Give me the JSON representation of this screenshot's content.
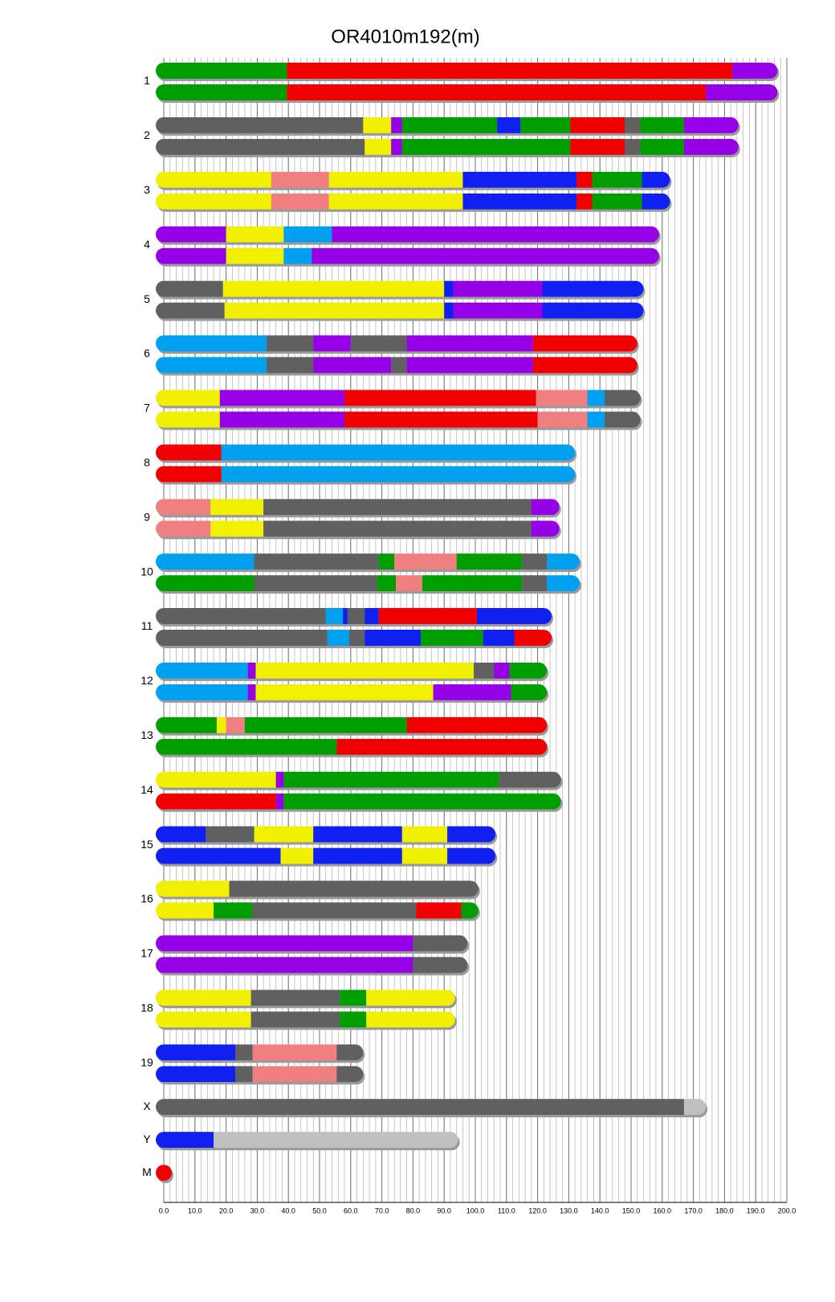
{
  "chart_data": {
    "type": "ideogram",
    "title": "OR4010m192(m)",
    "palette": {
      "G": "#009e00",
      "R": "#f00000",
      "P": "#9600e6",
      "Gy": "#606060",
      "Y": "#f0f000",
      "B": "#1020f0",
      "S": "#f08080",
      "LB": "#00a0f0",
      "LGy": "#c0c0c0"
    },
    "xlim": [
      0,
      200
    ],
    "xticks": [
      {
        "value": 0,
        "label": "0.0"
      },
      {
        "value": 10,
        "label": "10.0"
      },
      {
        "value": 20,
        "label": "20.0"
      },
      {
        "value": 30,
        "label": "30.0"
      },
      {
        "value": 40,
        "label": "40.0"
      },
      {
        "value": 50,
        "label": "50.0"
      },
      {
        "value": 60,
        "label": "60.0"
      },
      {
        "value": 70,
        "label": "70.0"
      },
      {
        "value": 80,
        "label": "80.0"
      },
      {
        "value": 90,
        "label": "90.0"
      },
      {
        "value": 100,
        "label": "100.0"
      },
      {
        "value": 110,
        "label": "110.0"
      },
      {
        "value": 120,
        "label": "120.0"
      },
      {
        "value": 130,
        "label": "130.0"
      },
      {
        "value": 140,
        "label": "140.0"
      },
      {
        "value": 150,
        "label": "150.0"
      },
      {
        "value": 160,
        "label": "160.0"
      },
      {
        "value": 170,
        "label": "170.0"
      },
      {
        "value": 180,
        "label": "180.0"
      },
      {
        "value": 190,
        "label": "190.0"
      },
      {
        "value": 200,
        "label": "200.0"
      }
    ],
    "minor_grid_step": 2,
    "chromosomes": [
      {
        "label": "1",
        "haplotypes": [
          [
            [
              39.5,
              "G"
            ],
            [
              182.5,
              "R"
            ],
            [
              197,
              "P"
            ]
          ],
          [
            [
              39.5,
              "G"
            ],
            [
              174,
              "R"
            ],
            [
              197,
              "P"
            ]
          ]
        ]
      },
      {
        "label": "2",
        "haplotypes": [
          [
            [
              64,
              "Gy"
            ],
            [
              73,
              "Y"
            ],
            [
              76.5,
              "P"
            ],
            [
              107,
              "G"
            ],
            [
              114.5,
              "B"
            ],
            [
              130.5,
              "G"
            ],
            [
              148,
              "R"
            ],
            [
              153,
              "Gy"
            ],
            [
              167,
              "G"
            ],
            [
              184.5,
              "P"
            ]
          ],
          [
            [
              64.5,
              "Gy"
            ],
            [
              73,
              "Y"
            ],
            [
              76.5,
              "P"
            ],
            [
              130.5,
              "G"
            ],
            [
              148,
              "R"
            ],
            [
              153,
              "Gy"
            ],
            [
              167,
              "G"
            ],
            [
              184.5,
              "P"
            ]
          ]
        ]
      },
      {
        "label": "3",
        "haplotypes": [
          [
            [
              34.5,
              "Y"
            ],
            [
              53,
              "S"
            ],
            [
              96,
              "Y"
            ],
            [
              132.5,
              "B"
            ],
            [
              137.5,
              "R"
            ],
            [
              153.5,
              "G"
            ],
            [
              162.5,
              "B"
            ]
          ],
          [
            [
              34.5,
              "Y"
            ],
            [
              53,
              "S"
            ],
            [
              96,
              "Y"
            ],
            [
              132.5,
              "B"
            ],
            [
              137.5,
              "R"
            ],
            [
              153.5,
              "G"
            ],
            [
              162.5,
              "B"
            ]
          ]
        ]
      },
      {
        "label": "4",
        "haplotypes": [
          [
            [
              20,
              "P"
            ],
            [
              38.5,
              "Y"
            ],
            [
              54,
              "LB"
            ],
            [
              159,
              "P"
            ]
          ],
          [
            [
              20,
              "P"
            ],
            [
              38.5,
              "Y"
            ],
            [
              47.5,
              "LB"
            ],
            [
              159,
              "P"
            ]
          ]
        ]
      },
      {
        "label": "5",
        "haplotypes": [
          [
            [
              19,
              "Gy"
            ],
            [
              90,
              "Y"
            ],
            [
              93,
              "B"
            ],
            [
              121.5,
              "P"
            ],
            [
              154,
              "B"
            ]
          ],
          [
            [
              19.5,
              "Gy"
            ],
            [
              90,
              "Y"
            ],
            [
              93,
              "B"
            ],
            [
              121.5,
              "P"
            ],
            [
              154,
              "B"
            ]
          ]
        ]
      },
      {
        "label": "6",
        "haplotypes": [
          [
            [
              33,
              "LB"
            ],
            [
              48,
              "Gy"
            ],
            [
              60,
              "P"
            ],
            [
              78,
              "Gy"
            ],
            [
              118.5,
              "P"
            ],
            [
              152,
              "R"
            ]
          ],
          [
            [
              33,
              "LB"
            ],
            [
              48,
              "Gy"
            ],
            [
              73,
              "P"
            ],
            [
              78,
              "Gy"
            ],
            [
              118.5,
              "P"
            ],
            [
              152,
              "R"
            ]
          ]
        ]
      },
      {
        "label": "7",
        "haplotypes": [
          [
            [
              18,
              "Y"
            ],
            [
              58,
              "P"
            ],
            [
              119.5,
              "R"
            ],
            [
              136,
              "S"
            ],
            [
              141.5,
              "LB"
            ],
            [
              153,
              "Gy"
            ]
          ],
          [
            [
              18,
              "Y"
            ],
            [
              58,
              "P"
            ],
            [
              120,
              "R"
            ],
            [
              136,
              "S"
            ],
            [
              141.5,
              "LB"
            ],
            [
              153,
              "Gy"
            ]
          ]
        ]
      },
      {
        "label": "8",
        "haplotypes": [
          [
            [
              18.5,
              "R"
            ],
            [
              132,
              "LB"
            ]
          ],
          [
            [
              18.5,
              "R"
            ],
            [
              132,
              "LB"
            ]
          ]
        ]
      },
      {
        "label": "9",
        "haplotypes": [
          [
            [
              15,
              "S"
            ],
            [
              32,
              "Y"
            ],
            [
              118,
              "Gy"
            ],
            [
              127,
              "P"
            ]
          ],
          [
            [
              15,
              "S"
            ],
            [
              32,
              "Y"
            ],
            [
              118,
              "Gy"
            ],
            [
              127,
              "P"
            ]
          ]
        ]
      },
      {
        "label": "10",
        "haplotypes": [
          [
            [
              29,
              "LB"
            ],
            [
              69,
              "Gy"
            ],
            [
              74,
              "G"
            ],
            [
              94,
              "S"
            ],
            [
              115,
              "G"
            ],
            [
              123,
              "Gy"
            ],
            [
              133.5,
              "LB"
            ]
          ],
          [
            [
              29,
              "G"
            ],
            [
              68.5,
              "Gy"
            ],
            [
              74.5,
              "G"
            ],
            [
              83,
              "S"
            ],
            [
              115,
              "G"
            ],
            [
              123,
              "Gy"
            ],
            [
              133.5,
              "LB"
            ]
          ]
        ]
      },
      {
        "label": "11",
        "haplotypes": [
          [
            [
              52,
              "Gy"
            ],
            [
              57.5,
              "LB"
            ],
            [
              59,
              "B"
            ],
            [
              64.5,
              "Gy"
            ],
            [
              69,
              "B"
            ],
            [
              100.5,
              "R"
            ],
            [
              124.5,
              "B"
            ]
          ],
          [
            [
              52.5,
              "Gy"
            ],
            [
              59.5,
              "LB"
            ],
            [
              64.5,
              "Gy"
            ],
            [
              82.5,
              "B"
            ],
            [
              102.5,
              "G"
            ],
            [
              112.5,
              "B"
            ],
            [
              124.5,
              "R"
            ]
          ]
        ]
      },
      {
        "label": "12",
        "haplotypes": [
          [
            [
              27,
              "LB"
            ],
            [
              29.5,
              "P"
            ],
            [
              99.5,
              "Y"
            ],
            [
              106,
              "Gy"
            ],
            [
              111,
              "P"
            ],
            [
              123,
              "G"
            ]
          ],
          [
            [
              27,
              "LB"
            ],
            [
              29.5,
              "P"
            ],
            [
              86.5,
              "Y"
            ],
            [
              111.5,
              "P"
            ],
            [
              123,
              "G"
            ]
          ]
        ]
      },
      {
        "label": "13",
        "haplotypes": [
          [
            [
              17,
              "G"
            ],
            [
              20,
              "Y"
            ],
            [
              26,
              "S"
            ],
            [
              78,
              "G"
            ],
            [
              123,
              "R"
            ]
          ],
          [
            [
              55.5,
              "G"
            ],
            [
              123,
              "R"
            ]
          ]
        ]
      },
      {
        "label": "14",
        "haplotypes": [
          [
            [
              36,
              "Y"
            ],
            [
              38.5,
              "P"
            ],
            [
              107.5,
              "G"
            ],
            [
              127.5,
              "Gy"
            ]
          ],
          [
            [
              36,
              "R"
            ],
            [
              38.5,
              "P"
            ],
            [
              127.5,
              "G"
            ]
          ]
        ]
      },
      {
        "label": "15",
        "haplotypes": [
          [
            [
              13.5,
              "B"
            ],
            [
              29,
              "Gy"
            ],
            [
              48,
              "Y"
            ],
            [
              76.5,
              "B"
            ],
            [
              91,
              "Y"
            ],
            [
              106.5,
              "B"
            ]
          ],
          [
            [
              37.5,
              "B"
            ],
            [
              48,
              "Y"
            ],
            [
              76.5,
              "B"
            ],
            [
              91,
              "Y"
            ],
            [
              106.5,
              "B"
            ]
          ]
        ]
      },
      {
        "label": "16",
        "haplotypes": [
          [
            [
              21,
              "Y"
            ],
            [
              101,
              "Gy"
            ]
          ],
          [
            [
              16,
              "Y"
            ],
            [
              28.5,
              "G"
            ],
            [
              81,
              "Gy"
            ],
            [
              95.5,
              "R"
            ],
            [
              101,
              "G"
            ]
          ]
        ]
      },
      {
        "label": "17",
        "haplotypes": [
          [
            [
              80,
              "P"
            ],
            [
              97.5,
              "Gy"
            ]
          ],
          [
            [
              80,
              "P"
            ],
            [
              97.5,
              "Gy"
            ]
          ]
        ]
      },
      {
        "label": "18",
        "haplotypes": [
          [
            [
              28,
              "Y"
            ],
            [
              56.5,
              "Gy"
            ],
            [
              65,
              "G"
            ],
            [
              93.5,
              "Y"
            ]
          ],
          [
            [
              28,
              "Y"
            ],
            [
              56.5,
              "Gy"
            ],
            [
              65,
              "G"
            ],
            [
              93.5,
              "Y"
            ]
          ]
        ]
      },
      {
        "label": "19",
        "haplotypes": [
          [
            [
              23,
              "B"
            ],
            [
              28.5,
              "Gy"
            ],
            [
              55.5,
              "S"
            ],
            [
              64,
              "Gy"
            ]
          ],
          [
            [
              23,
              "B"
            ],
            [
              28.5,
              "Gy"
            ],
            [
              55.5,
              "S"
            ],
            [
              64,
              "Gy"
            ]
          ]
        ]
      },
      {
        "label": "X",
        "haplotypes": [
          [
            [
              167,
              "Gy"
            ],
            [
              174,
              "LGy"
            ]
          ]
        ]
      },
      {
        "label": "Y",
        "haplotypes": [
          [
            [
              16,
              "B"
            ],
            [
              94.5,
              "LGy"
            ]
          ]
        ]
      },
      {
        "label": "M",
        "haplotypes": [
          [
            [
              0.02,
              "R"
            ]
          ]
        ]
      }
    ]
  }
}
